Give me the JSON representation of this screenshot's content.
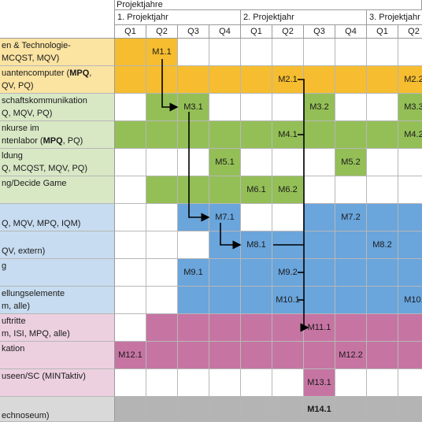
{
  "header": {
    "title": "Projektjahre",
    "years": [
      "1. Projektjahr",
      "2. Projektjahr",
      "3. Projektjahr"
    ],
    "quarters": [
      "Q1",
      "Q2",
      "Q3",
      "Q4",
      "Q1",
      "Q2",
      "Q3",
      "Q4",
      "Q1",
      "Q2"
    ]
  },
  "colors": {
    "yellow": "#f5bd2f",
    "green": "#94bf57",
    "blue": "#6aa5dc",
    "pink": "#c675a3",
    "gray": "#b4b4b4",
    "label_yellow": "#fbe3a2",
    "label_green": "#d8e8c5",
    "label_blue": "#c7dcf0",
    "label_pink": "#ecd0e0",
    "label_gray": "#d9d9d9"
  },
  "rows": [
    {
      "label_lines": [
        "en & Technologie-",
        "MCQST, MQV)"
      ],
      "label_color": "label_yellow",
      "bar_color": "yellow",
      "cells": [
        1,
        1,
        0,
        0,
        0,
        0,
        0,
        0,
        0,
        0
      ],
      "milestones": {
        "1": "M1.1"
      }
    },
    {
      "label_lines": [
        "uantencomputer (**MPQ**,",
        "QV, PQ)"
      ],
      "label_color": "label_yellow",
      "bar_color": "yellow",
      "cells": [
        1,
        1,
        1,
        1,
        1,
        1,
        1,
        1,
        1,
        1
      ],
      "milestones": {
        "5": "M2.1",
        "9": "M2.2"
      }
    },
    {
      "label_lines": [
        "schaftskommunikation",
        "Q, MQV, PQ)"
      ],
      "label_color": "label_green",
      "bar_color": "green",
      "cells": [
        0,
        1,
        1,
        0,
        0,
        0,
        1,
        0,
        0,
        1
      ],
      "milestones": {
        "2": "M3.1",
        "6": "M3.2",
        "9": "M3.3"
      }
    },
    {
      "label_lines": [
        "nkurse im",
        "ntenlabor (**MPQ**, PQ)"
      ],
      "label_color": "label_green",
      "bar_color": "green",
      "cells": [
        1,
        1,
        1,
        1,
        1,
        1,
        1,
        1,
        1,
        1
      ],
      "milestones": {
        "5": "M4.1",
        "9": "M4.2"
      }
    },
    {
      "label_lines": [
        "ldung",
        "Q, MCQST, MQV, PQ)"
      ],
      "label_color": "label_green",
      "bar_color": "green",
      "cells": [
        0,
        0,
        0,
        1,
        0,
        0,
        0,
        1,
        0,
        0
      ],
      "milestones": {
        "3": "M5.1",
        "7": "M5.2"
      }
    },
    {
      "label_lines": [
        "ng/Decide Game",
        ""
      ],
      "label_color": "label_green",
      "bar_color": "green",
      "cells": [
        0,
        1,
        1,
        1,
        1,
        1,
        0,
        0,
        0,
        0
      ],
      "milestones": {
        "4": "M6.1",
        "5": "M6.2"
      }
    },
    {
      "label_lines": [
        "",
        "Q, MQV, MPQ, IQM)"
      ],
      "label_color": "label_blue",
      "bar_color": "blue",
      "cells": [
        0,
        0,
        1,
        1,
        0,
        0,
        1,
        1,
        1,
        1
      ],
      "milestones": {
        "3": "M7.1",
        "7": "M7.2"
      }
    },
    {
      "label_lines": [
        "",
        "QV, extern)"
      ],
      "label_color": "label_blue",
      "bar_color": "blue",
      "cells": [
        0,
        0,
        0,
        1,
        1,
        1,
        1,
        1,
        1,
        1
      ],
      "milestones": {
        "4": "M8.1",
        "8": "M8.2"
      }
    },
    {
      "label_lines": [
        "g",
        ""
      ],
      "label_color": "label_blue",
      "bar_color": "blue",
      "cells": [
        0,
        0,
        1,
        1,
        1,
        1,
        1,
        1,
        1,
        1
      ],
      "milestones": {
        "2": "M9.1",
        "5": "M9.2"
      }
    },
    {
      "label_lines": [
        "ellungselemente",
        "m, alle)"
      ],
      "label_color": "label_blue",
      "bar_color": "blue",
      "cells": [
        0,
        0,
        1,
        1,
        1,
        1,
        1,
        1,
        1,
        1
      ],
      "milestones": {
        "5": "M10.1",
        "9": "M10."
      }
    },
    {
      "label_lines": [
        "uftritte",
        "m, ISI, MPQ, alle)"
      ],
      "label_color": "label_pink",
      "bar_color": "pink",
      "cells": [
        0,
        1,
        1,
        1,
        1,
        1,
        1,
        1,
        1,
        1
      ],
      "milestones": {
        "6": "M11.1"
      }
    },
    {
      "label_lines": [
        "kation",
        ""
      ],
      "label_color": "label_pink",
      "bar_color": "pink",
      "cells": [
        1,
        1,
        1,
        1,
        1,
        1,
        1,
        1,
        1,
        1
      ],
      "milestones": {
        "0": "M12.1",
        "7": "M12.2"
      }
    },
    {
      "label_lines": [
        "useen/SC (MINTaktiv)",
        ""
      ],
      "label_color": "label_pink",
      "bar_color": "pink",
      "cells": [
        0,
        0,
        0,
        0,
        0,
        0,
        1,
        0,
        0,
        0
      ],
      "milestones": {
        "6": "M13.1"
      }
    },
    {
      "label_lines": [
        "",
        "echnoseum)"
      ],
      "label_color": "label_gray",
      "bar_color": "gray",
      "cells": [
        1,
        1,
        1,
        1,
        1,
        1,
        1,
        1,
        1,
        1
      ],
      "milestones": {
        "6": "**M14.1**"
      }
    }
  ]
}
